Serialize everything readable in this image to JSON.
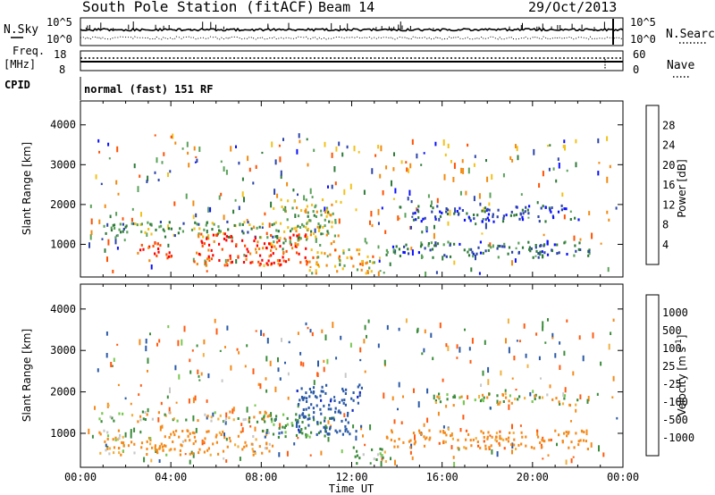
{
  "header": {
    "station": "South Pole Station (fitACF)",
    "beam": "Beam 14",
    "date": "29/Oct/2013"
  },
  "nsky_panel": {
    "left_label": "N.Sky",
    "left_ticks": [
      "10^5",
      "10^0"
    ],
    "right_label": "N.Search",
    "right_ticks": [
      "10^5",
      "10^0"
    ]
  },
  "freq_panel": {
    "left_label_1": "Freq.",
    "left_label_2": "[MHz]",
    "left_ticks": [
      "18",
      "8"
    ],
    "right_label": "Nave",
    "right_ticks": [
      "60",
      "0"
    ]
  },
  "cpid": {
    "label": "CPID",
    "mode": "normal (fast) 151 RF"
  },
  "colors": {
    "power_scale": [
      "#0a10ff",
      "#2c44a8",
      "#2f7a3a",
      "#5aa15a",
      "#f2c21a",
      "#f18a10",
      "#ff5000",
      "#ff0000"
    ],
    "velocity_scale": [
      "#ff0000",
      "#ff5a10",
      "#f48a1a",
      "#f0b040",
      "#c8c8c8",
      "#78c850",
      "#3c8c3c",
      "#2b5aa6",
      "#1428c8"
    ]
  },
  "chart_data": [
    {
      "type": "heatmap",
      "title": "",
      "quantity": "Power",
      "xlabel": "",
      "ylabel": "Slant Range [km]",
      "xlim_hours": [
        0,
        24
      ],
      "ylim_km": [
        180,
        4600
      ],
      "x_ticks": [
        "00:00",
        "04:00",
        "08:00",
        "12:00",
        "16:00",
        "20:00",
        "00:00"
      ],
      "y_ticks": [
        1000,
        2000,
        3000,
        4000
      ],
      "colorbar": {
        "label": "Power [dB]",
        "range": [
          0,
          32
        ],
        "tick_labels": [
          "4",
          "8",
          "12",
          "16",
          "20",
          "24",
          "28"
        ]
      },
      "echo_regions": [
        {
          "hours": [
            0.8,
            8.5
          ],
          "range_km": [
            1200,
            1600
          ],
          "power_db": 12
        },
        {
          "hours": [
            2.5,
            4.0
          ],
          "range_km": [
            600,
            1100
          ],
          "power_db": 28
        },
        {
          "hours": [
            5.0,
            10.0
          ],
          "range_km": [
            500,
            1300
          ],
          "power_db": 28
        },
        {
          "hours": [
            8.5,
            11.5
          ],
          "range_km": [
            1000,
            2200
          ],
          "power_db": 16
        },
        {
          "hours": [
            10.0,
            13.0
          ],
          "range_km": [
            300,
            900
          ],
          "power_db": 20
        },
        {
          "hours": [
            13.5,
            22.5
          ],
          "range_km": [
            700,
            1100
          ],
          "power_db": 8
        },
        {
          "hours": [
            14.0,
            22.0
          ],
          "range_km": [
            1600,
            2000
          ],
          "power_db": 6
        }
      ]
    },
    {
      "type": "heatmap",
      "title": "",
      "quantity": "Velocity",
      "xlabel": "Time UT",
      "ylabel": "Slant Range [km]",
      "xlim_hours": [
        0,
        24
      ],
      "ylim_km": [
        180,
        4600
      ],
      "x_ticks": [
        "00:00",
        "04:00",
        "08:00",
        "12:00",
        "16:00",
        "20:00",
        "00:00"
      ],
      "y_ticks": [
        1000,
        2000,
        3000,
        4000
      ],
      "colorbar": {
        "label": "Velocity [m s^-1]",
        "tick_labels": [
          "1000",
          "500",
          "100",
          "25",
          "-25",
          "-100",
          "-500",
          "-1000"
        ]
      },
      "echo_regions": [
        {
          "hours": [
            0.8,
            8.5
          ],
          "range_km": [
            1300,
            1550
          ],
          "velocity_ms": 0
        },
        {
          "hours": [
            0.8,
            8.5
          ],
          "range_km": [
            500,
            1100
          ],
          "velocity_ms": -200
        },
        {
          "hours": [
            8.0,
            11.0
          ],
          "range_km": [
            900,
            1500
          ],
          "velocity_ms": 300
        },
        {
          "hours": [
            9.5,
            12.5
          ],
          "range_km": [
            1000,
            2200
          ],
          "velocity_ms": 800
        },
        {
          "hours": [
            12.0,
            13.5
          ],
          "range_km": [
            300,
            700
          ],
          "velocity_ms": 200
        },
        {
          "hours": [
            15.5,
            22.0
          ],
          "range_km": [
            1700,
            2000
          ],
          "velocity_ms": 0
        },
        {
          "hours": [
            13.5,
            22.5
          ],
          "range_km": [
            650,
            1100
          ],
          "velocity_ms": -300
        }
      ]
    }
  ]
}
